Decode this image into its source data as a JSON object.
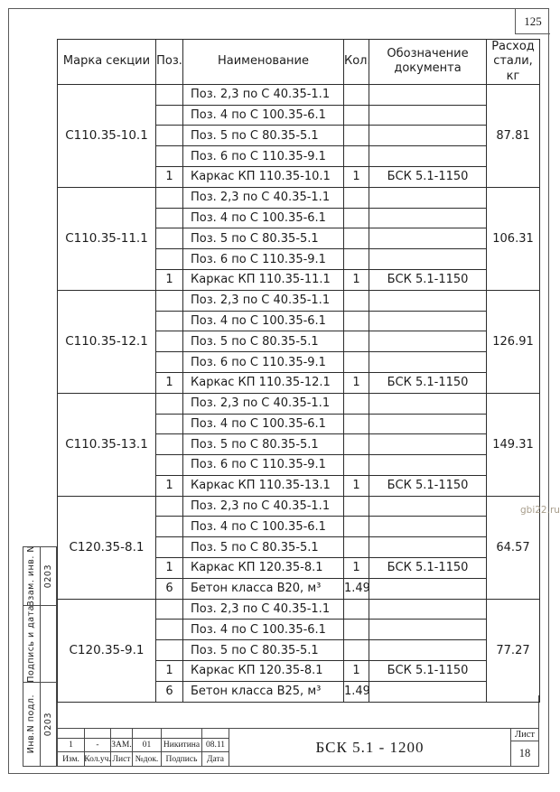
{
  "page": {
    "sheet_corner_number": "125",
    "watermark": "gbi22.ru"
  },
  "table": {
    "headers": [
      "Марка секции",
      "Поз.",
      "Наименование",
      "Кол.",
      "Обозначение\nдокумента",
      "Расход\nстали, кг"
    ],
    "groups": [
      {
        "mark": "С110.35-10.1",
        "steel": "87.81",
        "rows": [
          [
            "",
            "Поз. 2,3 по С 40.35-1.1",
            "",
            ""
          ],
          [
            "",
            "Поз. 4 по С 100.35-6.1",
            "",
            ""
          ],
          [
            "",
            "Поз. 5 по С 80.35-5.1",
            "",
            ""
          ],
          [
            "",
            "Поз. 6 по С 110.35-9.1",
            "",
            ""
          ],
          [
            "1",
            "Каркас КП 110.35-10.1",
            "1",
            "БСК 5.1-1150"
          ]
        ]
      },
      {
        "mark": "С110.35-11.1",
        "steel": "106.31",
        "rows": [
          [
            "",
            "Поз. 2,3 по С 40.35-1.1",
            "",
            ""
          ],
          [
            "",
            "Поз. 4 по С 100.35-6.1",
            "",
            ""
          ],
          [
            "",
            "Поз. 5 по С 80.35-5.1",
            "",
            ""
          ],
          [
            "",
            "Поз. 6 по С 110.35-9.1",
            "",
            ""
          ],
          [
            "1",
            "Каркас КП 110.35-11.1",
            "1",
            "БСК 5.1-1150"
          ]
        ]
      },
      {
        "mark": "С110.35-12.1",
        "steel": "126.91",
        "rows": [
          [
            "",
            "Поз. 2,3 по С 40.35-1.1",
            "",
            ""
          ],
          [
            "",
            "Поз. 4 по С 100.35-6.1",
            "",
            ""
          ],
          [
            "",
            "Поз. 5 по С 80.35-5.1",
            "",
            ""
          ],
          [
            "",
            "Поз. 6 по С 110.35-9.1",
            "",
            ""
          ],
          [
            "1",
            "Каркас КП 110.35-12.1",
            "1",
            "БСК 5.1-1150"
          ]
        ]
      },
      {
        "mark": "С110.35-13.1",
        "steel": "149.31",
        "rows": [
          [
            "",
            "Поз. 2,3 по С 40.35-1.1",
            "",
            ""
          ],
          [
            "",
            "Поз. 4 по С 100.35-6.1",
            "",
            ""
          ],
          [
            "",
            "Поз. 5 по С 80.35-5.1",
            "",
            ""
          ],
          [
            "",
            "Поз. 6 по С 110.35-9.1",
            "",
            ""
          ],
          [
            "1",
            "Каркас КП 110.35-13.1",
            "1",
            "БСК 5.1-1150"
          ]
        ]
      },
      {
        "mark": "С120.35-8.1",
        "steel": "64.57",
        "rows": [
          [
            "",
            "Поз. 2,3 по С 40.35-1.1",
            "",
            ""
          ],
          [
            "",
            "Поз. 4 по С 100.35-6.1",
            "",
            ""
          ],
          [
            "",
            "Поз. 5 по С 80.35-5.1",
            "",
            ""
          ],
          [
            "1",
            "Каркас КП 120.35-8.1",
            "1",
            "БСК 5.1-1150"
          ],
          [
            "6",
            "Бетон класса В20, м³",
            "1.49",
            ""
          ]
        ]
      },
      {
        "mark": "С120.35-9.1",
        "steel": "77.27",
        "rows": [
          [
            "",
            "Поз. 2,3 по С 40.35-1.1",
            "",
            ""
          ],
          [
            "",
            "Поз. 4 по С 100.35-6.1",
            "",
            ""
          ],
          [
            "",
            "Поз. 5 по С 80.35-5.1",
            "",
            ""
          ],
          [
            "1",
            "Каркас КП 120.35-8.1",
            "1",
            "БСК 5.1-1150"
          ],
          [
            "6",
            "Бетон класса В25, м³",
            "1.49",
            ""
          ]
        ]
      }
    ]
  },
  "stamps": [
    {
      "label": "Взам. инв. N",
      "value": "0203"
    },
    {
      "label": "Подпись и дата",
      "value": ""
    },
    {
      "label": "Инв.N подл.",
      "value": "0203"
    }
  ],
  "title_block": {
    "revision_row": [
      "1",
      "-",
      "ЗАМ.",
      "01",
      "Никитина",
      "08.11"
    ],
    "label_row": [
      "Изм.",
      "Кол.уч.",
      "Лист",
      "№док.",
      "Подпись",
      "Дата"
    ],
    "document_code": "БСК 5.1 - 1200",
    "sheet_label": "Лист",
    "sheet_number": "18"
  },
  "colors": {
    "table_line": "#2c2c2c",
    "frame_line": "#4a4a4a",
    "text": "#1c1c1c",
    "watermark": "#9e9480"
  }
}
